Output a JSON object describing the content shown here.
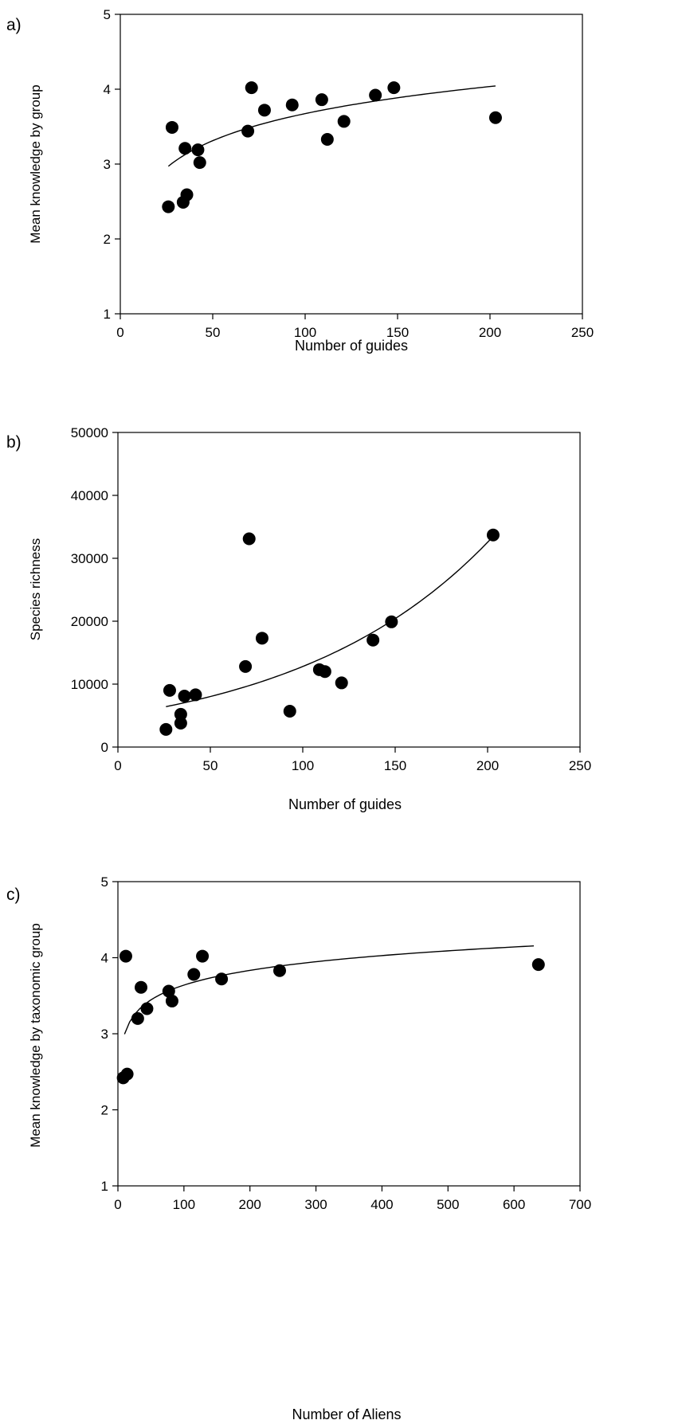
{
  "chart_data": [
    {
      "type": "scatter",
      "panel_label": "a)",
      "xlabel": "Number of guides",
      "ylabel": "Mean knowledge by group",
      "xlim": [
        0,
        250
      ],
      "ylim": [
        1,
        5
      ],
      "xticks": [
        0,
        50,
        100,
        150,
        200,
        250
      ],
      "yticks": [
        1,
        2,
        3,
        4,
        5
      ],
      "grid": false,
      "legend": "none",
      "points": [
        {
          "x": 26,
          "y": 2.43
        },
        {
          "x": 28,
          "y": 3.49
        },
        {
          "x": 34,
          "y": 2.49
        },
        {
          "x": 35,
          "y": 3.21
        },
        {
          "x": 36,
          "y": 2.59
        },
        {
          "x": 42,
          "y": 3.19
        },
        {
          "x": 43,
          "y": 3.02
        },
        {
          "x": 69,
          "y": 3.44
        },
        {
          "x": 71,
          "y": 4.02
        },
        {
          "x": 78,
          "y": 3.72
        },
        {
          "x": 93,
          "y": 3.79
        },
        {
          "x": 109,
          "y": 3.86
        },
        {
          "x": 112,
          "y": 3.33
        },
        {
          "x": 121,
          "y": 3.57
        },
        {
          "x": 138,
          "y": 3.92
        },
        {
          "x": 148,
          "y": 4.02
        },
        {
          "x": 203,
          "y": 3.62
        }
      ],
      "trend": {
        "type": "logarithmic",
        "equation": "y = 1.27 + 0.522 ln(x)",
        "a": 1.27,
        "b": 0.522,
        "x_range": [
          26,
          203
        ]
      },
      "colors": {
        "marker": "#000000",
        "line": "#000000"
      }
    },
    {
      "type": "scatter",
      "panel_label": "b)",
      "xlabel": "Number of guides",
      "ylabel": "Species richness",
      "xlim": [
        0,
        250
      ],
      "ylim": [
        0,
        50000
      ],
      "xticks": [
        0,
        50,
        100,
        150,
        200,
        250
      ],
      "yticks": [
        0,
        10000,
        20000,
        30000,
        40000,
        50000
      ],
      "grid": false,
      "legend": "none",
      "points": [
        {
          "x": 26,
          "y": 2800
        },
        {
          "x": 28,
          "y": 9000
        },
        {
          "x": 34,
          "y": 3800
        },
        {
          "x": 34,
          "y": 5200
        },
        {
          "x": 36,
          "y": 8100
        },
        {
          "x": 42,
          "y": 8300
        },
        {
          "x": 69,
          "y": 12800
        },
        {
          "x": 71,
          "y": 33100
        },
        {
          "x": 78,
          "y": 17300
        },
        {
          "x": 93,
          "y": 5700
        },
        {
          "x": 109,
          "y": 12300
        },
        {
          "x": 112,
          "y": 12000
        },
        {
          "x": 121,
          "y": 10200
        },
        {
          "x": 138,
          "y": 17000
        },
        {
          "x": 148,
          "y": 19900
        },
        {
          "x": 203,
          "y": 33700
        }
      ],
      "trend": {
        "type": "exponential",
        "equation": "y = 5036 e^(0.00933 x)",
        "a": 5036,
        "b": 0.00933,
        "x_range": [
          26,
          203
        ]
      },
      "colors": {
        "marker": "#000000",
        "line": "#000000"
      }
    },
    {
      "type": "scatter",
      "panel_label": "c)",
      "xlabel": "Number of Aliens",
      "ylabel": "Mean knowledge by taxonomic group",
      "xlim": [
        0,
        700
      ],
      "ylim": [
        1,
        5
      ],
      "xticks": [
        0,
        100,
        200,
        300,
        400,
        500,
        600,
        700
      ],
      "yticks": [
        1,
        2,
        3,
        4,
        5
      ],
      "grid": false,
      "legend": "none",
      "points": [
        {
          "x": 8,
          "y": 2.42
        },
        {
          "x": 12,
          "y": 4.02
        },
        {
          "x": 14,
          "y": 2.47
        },
        {
          "x": 30,
          "y": 3.2
        },
        {
          "x": 35,
          "y": 3.61
        },
        {
          "x": 44,
          "y": 3.33
        },
        {
          "x": 77,
          "y": 3.56
        },
        {
          "x": 82,
          "y": 3.43
        },
        {
          "x": 115,
          "y": 3.78
        },
        {
          "x": 128,
          "y": 4.02
        },
        {
          "x": 157,
          "y": 3.72
        },
        {
          "x": 245,
          "y": 3.83
        },
        {
          "x": 637,
          "y": 3.91
        }
      ],
      "trend": {
        "type": "logarithmic",
        "equation": "y = 2.35 + 0.28 ln(x)",
        "a": 2.35,
        "b": 0.28,
        "x_range": [
          10,
          630
        ]
      },
      "colors": {
        "marker": "#000000",
        "line": "#000000"
      }
    }
  ]
}
